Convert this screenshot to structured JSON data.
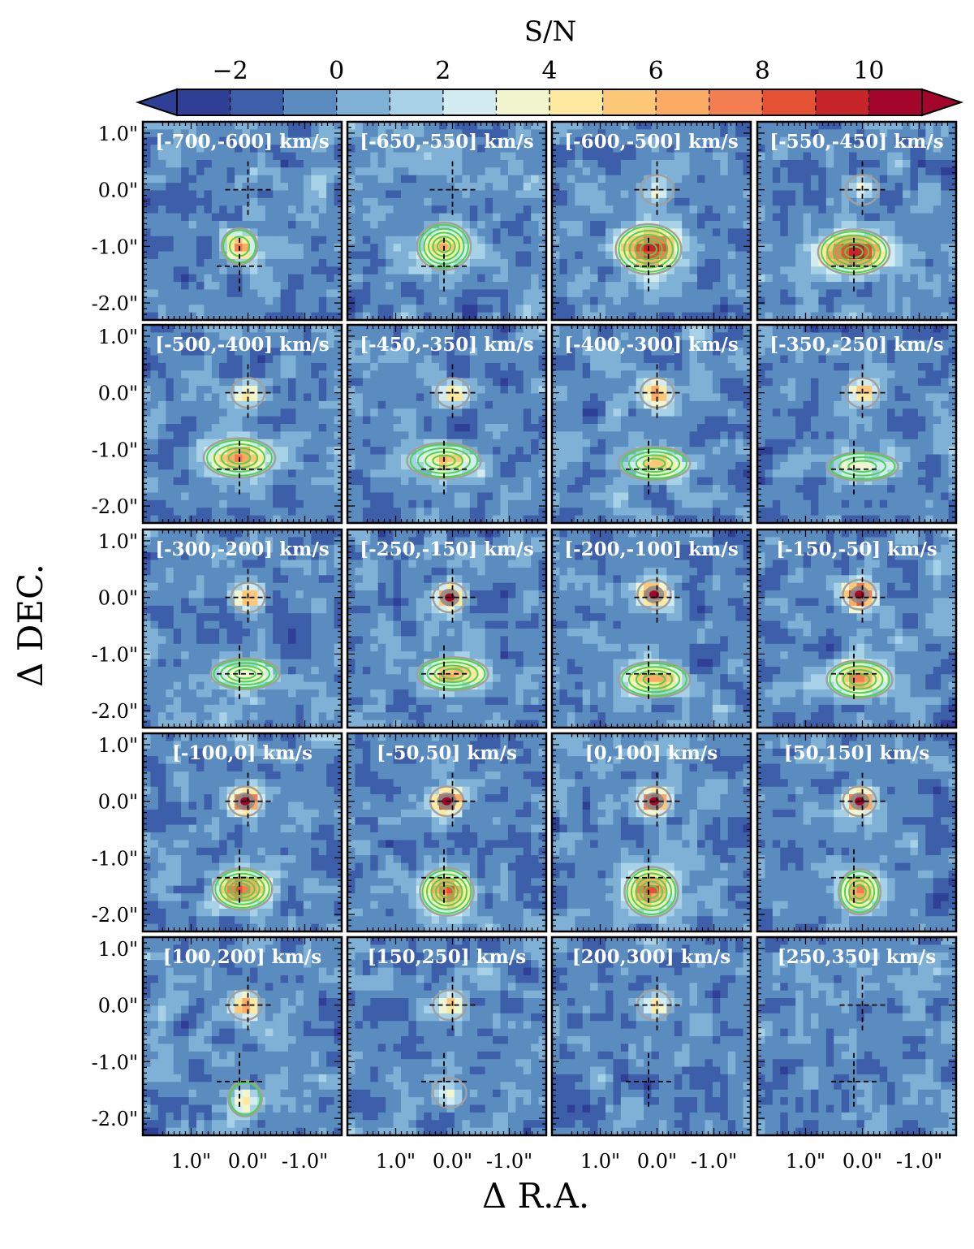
{
  "chart_data": {
    "type": "heatmap",
    "colorbar": {
      "label": "S/N",
      "tick_labels": [
        "−2",
        "0",
        "2",
        "4",
        "6",
        "8",
        "10"
      ],
      "tick_values": [
        -2,
        0,
        2,
        4,
        6,
        8,
        10
      ],
      "range": [
        -3,
        11
      ],
      "extend": "both",
      "levels": [
        -3,
        -2,
        -1,
        0,
        1,
        2,
        3,
        4,
        5,
        6,
        7,
        8,
        9,
        10,
        11
      ],
      "colors": [
        "#2f3f95",
        "#3d5ea9",
        "#5b8cc0",
        "#7fb0d6",
        "#a6d1e6",
        "#d3ecf2",
        "#f1f6cf",
        "#fee9a0",
        "#fdc877",
        "#fbab64",
        "#f37e51",
        "#e45233",
        "#c8252b",
        "#a3062a"
      ]
    },
    "xlabel": "Δ R.A.",
    "ylabel": "Δ DEC.",
    "x_tick_labels": [
      "1.0\"",
      "0.0\"",
      "-1.0\""
    ],
    "x_tick_values": [
      1.0,
      0.0,
      -1.0
    ],
    "y_tick_labels": [
      "1.0\"",
      "0.0\"",
      "-1.0\"",
      "-2.0\""
    ],
    "y_tick_values": [
      1.0,
      0.0,
      -1.0,
      -2.0
    ],
    "x_range_arcsec": [
      1.85,
      -1.65
    ],
    "y_range_arcsec": [
      -2.3,
      1.2
    ],
    "grid": false,
    "panel_colors": {
      "gray_contour": "#a0a0a0",
      "green_contour": "#4cd44c",
      "gray_fill": "#8a8a8a"
    },
    "crosshairs": [
      {
        "x": 0.0,
        "y": 0.0
      },
      {
        "x": 0.15,
        "y": -1.35
      }
    ],
    "panels": [
      {
        "label": "[-700,-600] km/s",
        "sources": [
          {
            "x": 0.15,
            "y": -1.0,
            "sn": 7.0,
            "green": 2,
            "rx": 0.3,
            "ry": 0.3
          }
        ]
      },
      {
        "label": "[-650,-550] km/s",
        "sources": [
          {
            "x": 0.15,
            "y": -1.0,
            "sn": 7.0,
            "green": 5,
            "rx": 0.45,
            "ry": 0.4
          }
        ]
      },
      {
        "label": "[-600,-500] km/s",
        "sources": [
          {
            "x": 0.15,
            "y": -1.05,
            "sn": 10.5,
            "green": 5,
            "rx": 0.55,
            "ry": 0.42
          },
          {
            "x": 0.0,
            "y": 0.0,
            "sn": 3.0
          }
        ]
      },
      {
        "label": "[-550,-450] km/s",
        "sources": [
          {
            "x": 0.15,
            "y": -1.1,
            "sn": 10.5,
            "green": 5,
            "rx": 0.6,
            "ry": 0.38
          },
          {
            "x": 0.0,
            "y": 0.0,
            "sn": 4.5
          }
        ]
      },
      {
        "label": "[-500,-400] km/s",
        "sources": [
          {
            "x": 0.15,
            "y": -1.15,
            "sn": 8.0,
            "green": 4,
            "rx": 0.6,
            "ry": 0.33
          },
          {
            "x": 0.0,
            "y": 0.0,
            "sn": 5.0
          }
        ]
      },
      {
        "label": "[-450,-350] km/s",
        "sources": [
          {
            "x": 0.15,
            "y": -1.2,
            "sn": 6.0,
            "green": 4,
            "rx": 0.62,
            "ry": 0.3
          },
          {
            "x": 0.0,
            "y": 0.0,
            "sn": 5.5
          }
        ]
      },
      {
        "label": "[-400,-300] km/s",
        "sources": [
          {
            "x": 0.05,
            "y": -1.25,
            "sn": 6.0,
            "green": 4,
            "rx": 0.6,
            "ry": 0.28
          },
          {
            "x": 0.0,
            "y": 0.0,
            "sn": 7.0
          }
        ]
      },
      {
        "label": "[-350,-250] km/s",
        "sources": [
          {
            "x": 0.0,
            "y": -1.3,
            "sn": 5.0,
            "green": 3,
            "rx": 0.6,
            "ry": 0.24
          },
          {
            "x": 0.0,
            "y": 0.0,
            "sn": 6.0
          }
        ]
      },
      {
        "label": "[-300,-200] km/s",
        "sources": [
          {
            "x": 0.05,
            "y": -1.35,
            "sn": 5.0,
            "green": 4,
            "rx": 0.58,
            "ry": 0.26
          },
          {
            "x": 0.0,
            "y": 0.0,
            "sn": 7.0
          }
        ]
      },
      {
        "label": "[-250,-150] km/s",
        "sources": [
          {
            "x": 0.0,
            "y": -1.35,
            "sn": 7.0,
            "green": 4,
            "rx": 0.6,
            "ry": 0.28
          },
          {
            "x": 0.05,
            "y": 0.0,
            "sn": 8.0,
            "gray": true
          }
        ]
      },
      {
        "label": "[-200,-100] km/s",
        "sources": [
          {
            "x": 0.05,
            "y": -1.45,
            "sn": 7.0,
            "green": 4,
            "rx": 0.6,
            "ry": 0.3
          },
          {
            "x": 0.05,
            "y": 0.05,
            "sn": 9.0,
            "gray": true
          }
        ]
      },
      {
        "label": "[-150,-50] km/s",
        "sources": [
          {
            "x": 0.05,
            "y": -1.45,
            "sn": 8.0,
            "green": 4,
            "rx": 0.55,
            "ry": 0.32
          },
          {
            "x": 0.05,
            "y": 0.05,
            "sn": 10.5,
            "gray": true
          }
        ]
      },
      {
        "label": "[-100,0] km/s",
        "sources": [
          {
            "x": 0.1,
            "y": -1.55,
            "sn": 9.0,
            "green": 5,
            "rx": 0.5,
            "ry": 0.35
          },
          {
            "x": 0.05,
            "y": 0.0,
            "sn": 11.0,
            "gray": true
          }
        ]
      },
      {
        "label": "[-50,50] km/s",
        "sources": [
          {
            "x": 0.1,
            "y": -1.6,
            "sn": 9.0,
            "green": 5,
            "rx": 0.45,
            "ry": 0.4
          },
          {
            "x": 0.1,
            "y": 0.0,
            "sn": 11.0,
            "gray": true
          }
        ]
      },
      {
        "label": "[0,100] km/s",
        "sources": [
          {
            "x": 0.1,
            "y": -1.6,
            "sn": 9.0,
            "green": 5,
            "rx": 0.45,
            "ry": 0.42
          },
          {
            "x": 0.05,
            "y": 0.0,
            "sn": 11.0,
            "gray": true
          }
        ]
      },
      {
        "label": "[50,150] km/s",
        "sources": [
          {
            "x": 0.05,
            "y": -1.6,
            "sn": 8.0,
            "green": 4,
            "rx": 0.35,
            "ry": 0.38
          },
          {
            "x": 0.05,
            "y": 0.0,
            "sn": 10.5,
            "gray": true
          }
        ]
      },
      {
        "label": "[100,200] km/s",
        "sources": [
          {
            "x": 0.05,
            "y": -1.65,
            "sn": 5.0,
            "green": 1,
            "rx": 0.28,
            "ry": 0.3
          },
          {
            "x": 0.05,
            "y": 0.0,
            "sn": 7.5
          }
        ]
      },
      {
        "label": "[150,250] km/s",
        "sources": [
          {
            "x": 0.05,
            "y": -1.55,
            "sn": 4.0
          },
          {
            "x": 0.05,
            "y": 0.0,
            "sn": 6.0
          }
        ]
      },
      {
        "label": "[200,300] km/s",
        "sources": [
          {
            "x": 0.05,
            "y": 0.0,
            "sn": 5.0
          }
        ]
      },
      {
        "label": "[250,350] km/s",
        "sources": []
      }
    ]
  }
}
